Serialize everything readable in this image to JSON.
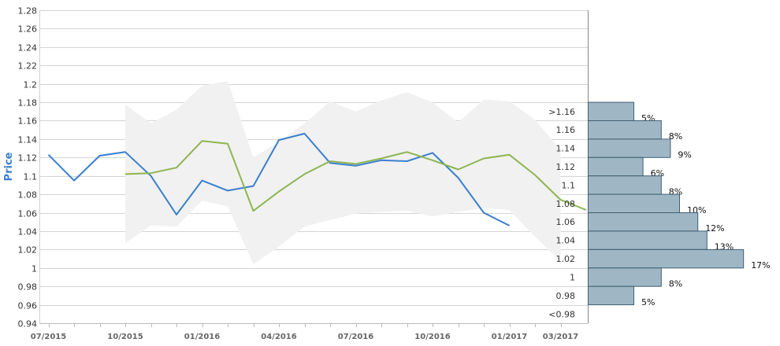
{
  "chart_data": {
    "type": "line",
    "ylabel": "Price",
    "ylim": [
      0.94,
      1.28
    ],
    "yticks": [
      "0.94",
      "0.96",
      "0.98",
      "1",
      "1.02",
      "1.04",
      "1.06",
      "1.08",
      "1.1",
      "1.12",
      "1.14",
      "1.16",
      "1.18",
      "1.2",
      "1.22",
      "1.24",
      "1.26",
      "1.28"
    ],
    "x_months": [
      "2015-07",
      "2015-08",
      "2015-09",
      "2015-10",
      "2015-11",
      "2015-12",
      "2016-01",
      "2016-02",
      "2016-03",
      "2016-04",
      "2016-05",
      "2016-06",
      "2016-07",
      "2016-08",
      "2016-09",
      "2016-10",
      "2016-11",
      "2016-12",
      "2017-01",
      "2017-02",
      "2017-03"
    ],
    "xtick_labels": [
      {
        "month": "2015-07",
        "label": "07/2015"
      },
      {
        "month": "2015-10",
        "label": "10/2015"
      },
      {
        "month": "2016-01",
        "label": "01/2016"
      },
      {
        "month": "2016-04",
        "label": "04/2016"
      },
      {
        "month": "2016-07",
        "label": "07/2016"
      },
      {
        "month": "2016-10",
        "label": "10/2016"
      },
      {
        "month": "2017-01",
        "label": "01/2017"
      },
      {
        "month": "2017-03",
        "label": "03/2017"
      }
    ],
    "series": [
      {
        "color": "#3a7fd0",
        "points": [
          [
            "2015-07",
            1.123
          ],
          [
            "2015-08",
            1.095
          ],
          [
            "2015-09",
            1.122
          ],
          [
            "2015-10",
            1.126
          ],
          [
            "2015-11",
            1.1
          ],
          [
            "2015-12",
            1.058
          ],
          [
            "2016-01",
            1.095
          ],
          [
            "2016-02",
            1.084
          ],
          [
            "2016-03",
            1.089
          ],
          [
            "2016-04",
            1.139
          ],
          [
            "2016-05",
            1.146
          ],
          [
            "2016-06",
            1.114
          ],
          [
            "2016-07",
            1.111
          ],
          [
            "2016-08",
            1.117
          ],
          [
            "2016-09",
            1.116
          ],
          [
            "2016-10",
            1.125
          ],
          [
            "2016-11",
            1.098
          ],
          [
            "2016-12",
            1.06
          ],
          [
            "2017-01",
            1.046
          ]
        ]
      },
      {
        "color": "#8db551",
        "points": [
          [
            "2015-10",
            1.102
          ],
          [
            "2015-11",
            1.103
          ],
          [
            "2015-12",
            1.109
          ],
          [
            "2016-01",
            1.138
          ],
          [
            "2016-02",
            1.135
          ],
          [
            "2016-03",
            1.062
          ],
          [
            "2016-04",
            1.083
          ],
          [
            "2016-05",
            1.102
          ],
          [
            "2016-06",
            1.116
          ],
          [
            "2016-07",
            1.113
          ],
          [
            "2016-08",
            1.119
          ],
          [
            "2016-09",
            1.126
          ],
          [
            "2016-10",
            1.117
          ],
          [
            "2016-11",
            1.107
          ],
          [
            "2016-12",
            1.119
          ],
          [
            "2017-01",
            1.123
          ],
          [
            "2017-02",
            1.101
          ],
          [
            "2017-03",
            1.074
          ],
          [
            "2017-03-31",
            1.063
          ]
        ]
      }
    ],
    "band": {
      "color": "#f1f1f1",
      "upper": [
        [
          "2015-10",
          1.178
        ],
        [
          "2015-11",
          1.157
        ],
        [
          "2015-12",
          1.172
        ],
        [
          "2016-01",
          1.198
        ],
        [
          "2016-02",
          1.203
        ],
        [
          "2016-03",
          1.12
        ],
        [
          "2016-04",
          1.137
        ],
        [
          "2016-05",
          1.157
        ],
        [
          "2016-06",
          1.181
        ],
        [
          "2016-07",
          1.17
        ],
        [
          "2016-08",
          1.182
        ],
        [
          "2016-09",
          1.191
        ],
        [
          "2016-10",
          1.18
        ],
        [
          "2016-11",
          1.158
        ],
        [
          "2016-12",
          1.183
        ],
        [
          "2017-01",
          1.181
        ],
        [
          "2017-02",
          1.161
        ],
        [
          "2017-03",
          1.128
        ]
      ],
      "lower": [
        [
          "2015-10",
          1.027
        ],
        [
          "2015-11",
          1.046
        ],
        [
          "2015-12",
          1.045
        ],
        [
          "2016-01",
          1.073
        ],
        [
          "2016-02",
          1.067
        ],
        [
          "2016-03",
          1.004
        ],
        [
          "2016-04",
          1.023
        ],
        [
          "2016-05",
          1.045
        ],
        [
          "2016-06",
          1.052
        ],
        [
          "2016-07",
          1.059
        ],
        [
          "2016-08",
          1.061
        ],
        [
          "2016-09",
          1.062
        ],
        [
          "2016-10",
          1.056
        ],
        [
          "2016-11",
          1.061
        ],
        [
          "2016-12",
          1.065
        ],
        [
          "2017-01",
          1.063
        ],
        [
          "2017-02",
          1.034
        ],
        [
          "2017-03",
          1.007
        ]
      ]
    },
    "histogram": {
      "color": "#9fb7c5",
      "bins": [
        {
          "label": ">1.16",
          "center": 1.17,
          "percent": 5
        },
        {
          "label": "1.16",
          "center": 1.15,
          "percent": 8
        },
        {
          "label": "1.14",
          "center": 1.13,
          "percent": 9
        },
        {
          "label": "1.12",
          "center": 1.11,
          "percent": 6
        },
        {
          "label": "1.1",
          "center": 1.09,
          "percent": 8
        },
        {
          "label": "1.08",
          "center": 1.07,
          "percent": 10
        },
        {
          "label": "1.06",
          "center": 1.05,
          "percent": 12
        },
        {
          "label": "1.04",
          "center": 1.03,
          "percent": 13
        },
        {
          "label": "1.02",
          "center": 1.01,
          "percent": 17
        },
        {
          "label": "1",
          "center": 0.99,
          "percent": 8
        },
        {
          "label": "0.98",
          "center": 0.97,
          "percent": 5
        },
        {
          "label": "<0.98",
          "center": null,
          "percent": null
        }
      ]
    },
    "grid": true
  }
}
